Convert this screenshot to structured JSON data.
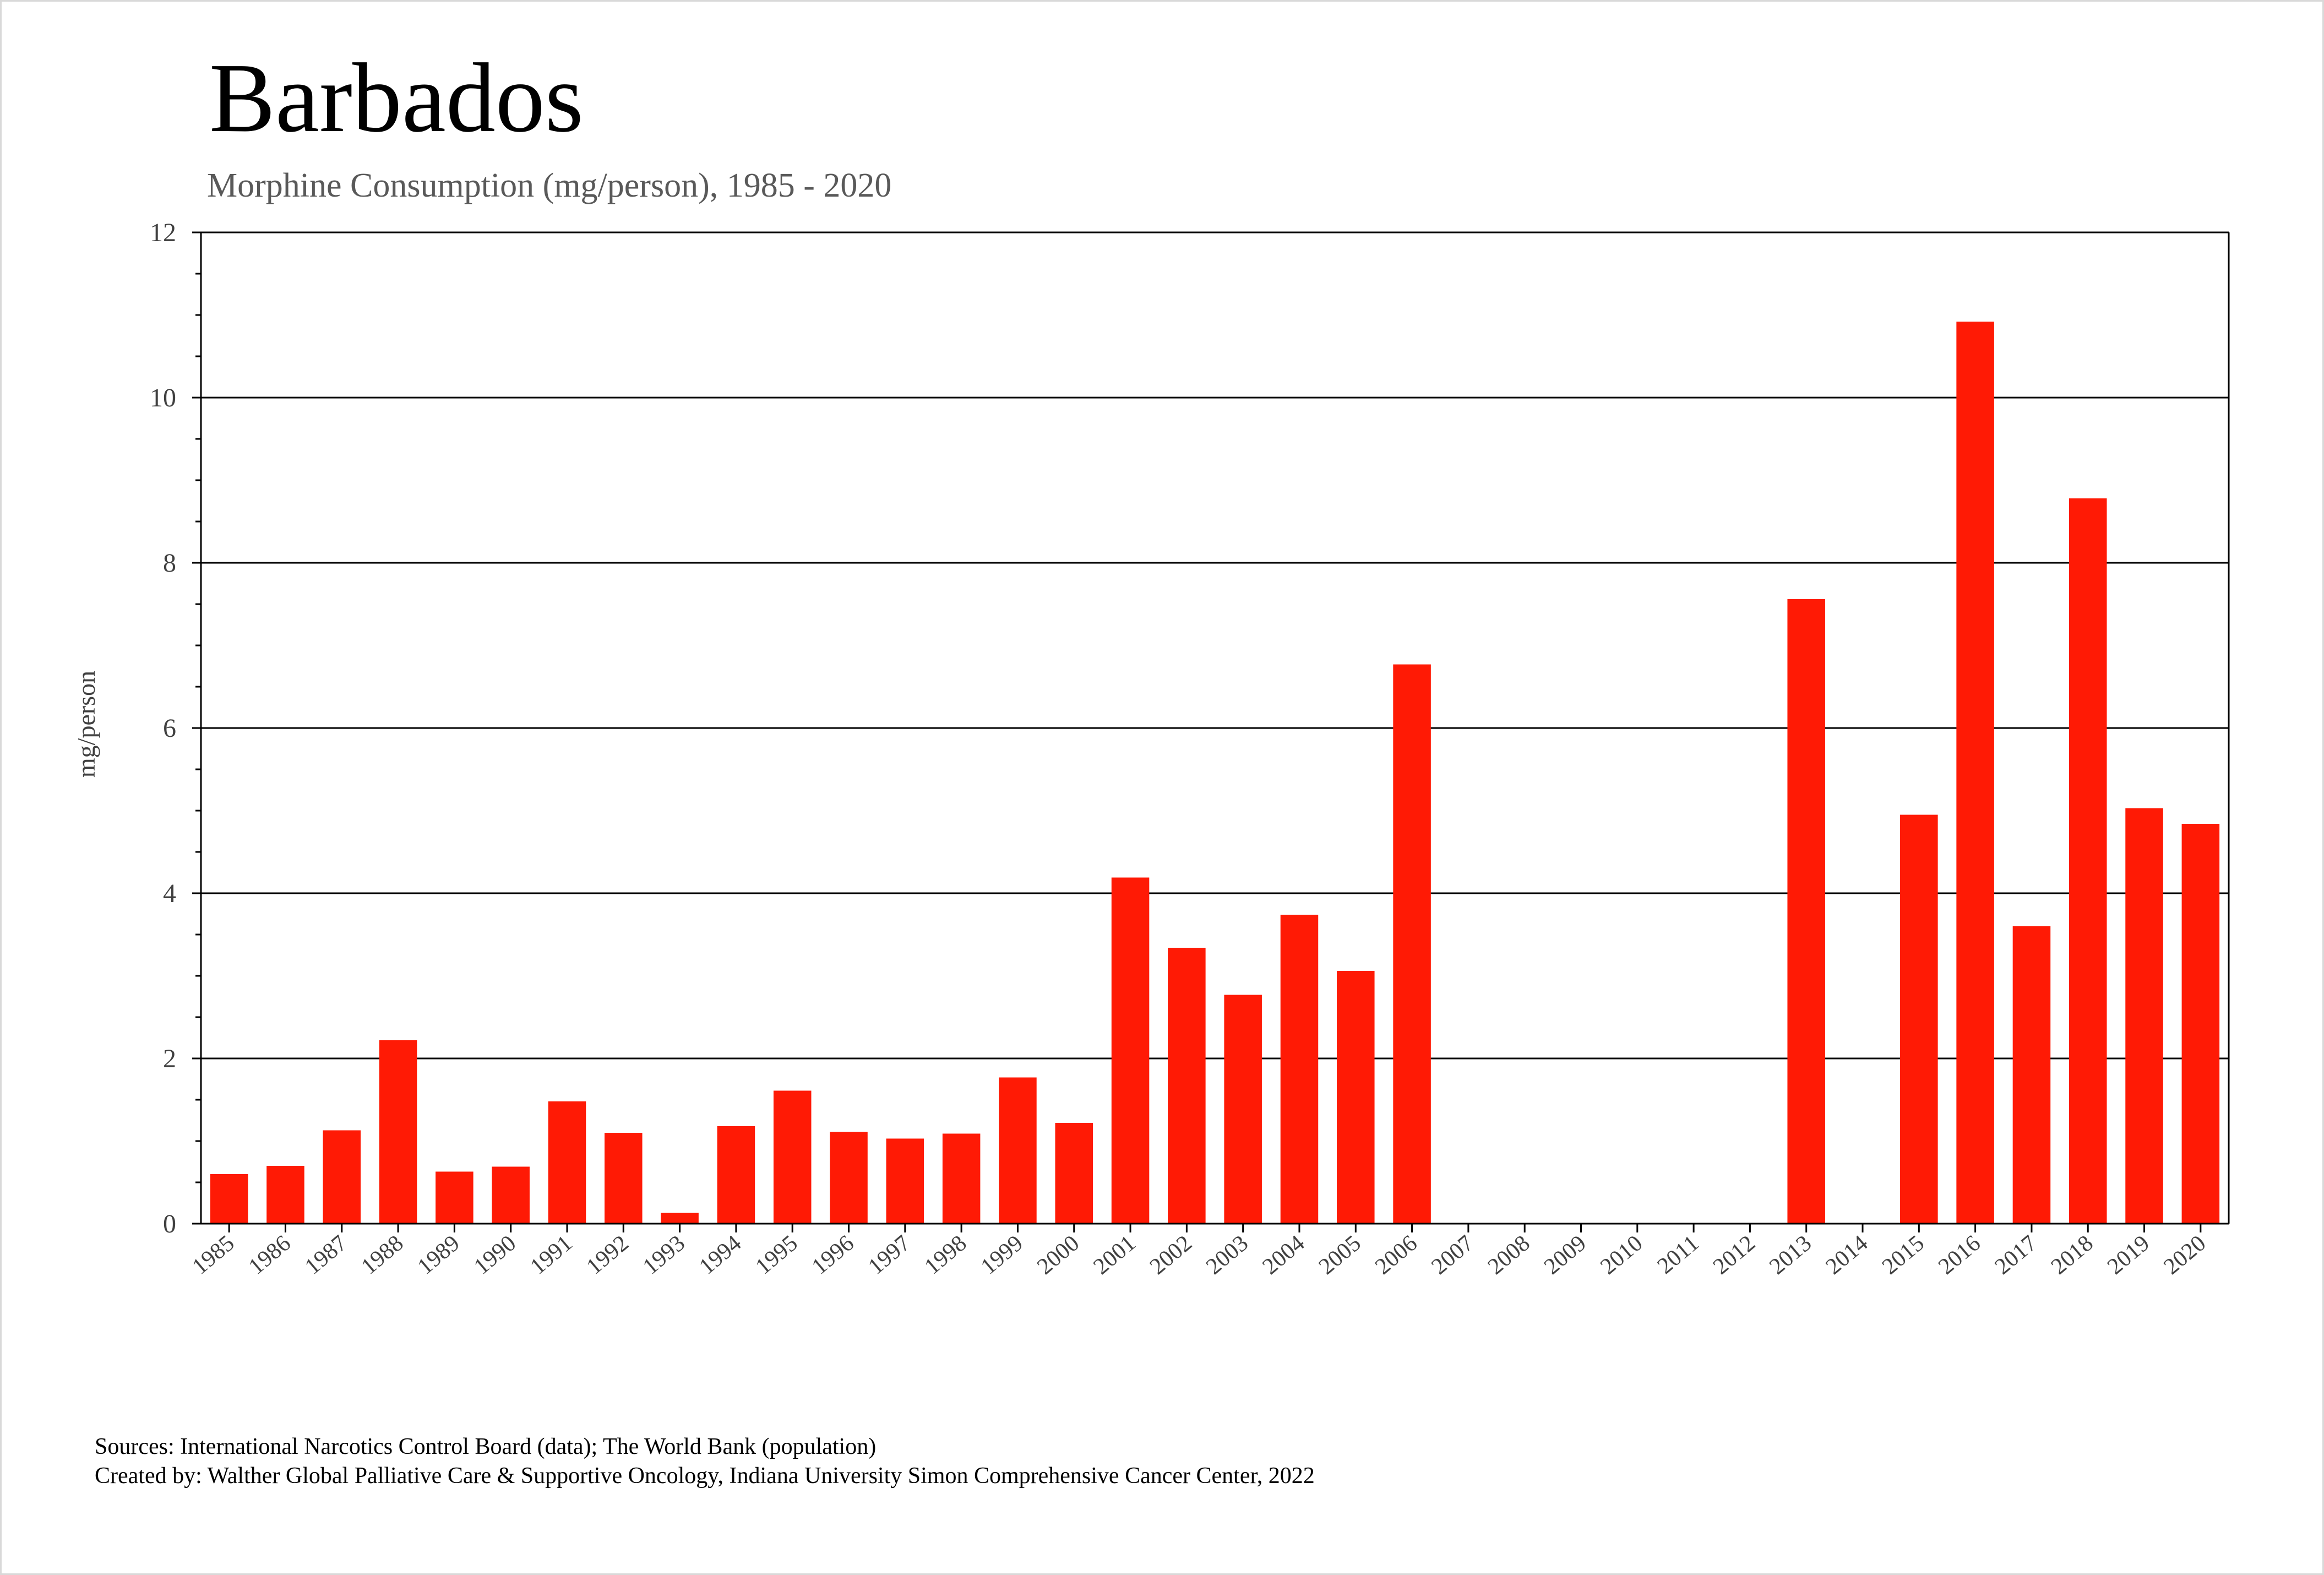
{
  "chart_data": {
    "type": "bar",
    "title": "Barbados",
    "subtitle": "Morphine Consumption (mg/person), 1985 - 2020",
    "xlabel": "",
    "ylabel": "mg/person",
    "ylim": [
      0,
      12
    ],
    "yticks": [
      0,
      2,
      4,
      6,
      8,
      10,
      12
    ],
    "grid": "horizontal",
    "legend": "none",
    "colors": {
      "bar": "#ff1a05",
      "grid": "#000000",
      "axis": "#000000"
    },
    "categories": [
      "1985",
      "1986",
      "1987",
      "1988",
      "1989",
      "1990",
      "1991",
      "1992",
      "1993",
      "1994",
      "1995",
      "1996",
      "1997",
      "1998",
      "1999",
      "2000",
      "2001",
      "2002",
      "2003",
      "2004",
      "2005",
      "2006",
      "2007",
      "2008",
      "2009",
      "2010",
      "2011",
      "2012",
      "2013",
      "2014",
      "2015",
      "2016",
      "2017",
      "2018",
      "2019",
      "2020"
    ],
    "values": [
      0.6,
      0.7,
      1.13,
      2.22,
      0.63,
      0.69,
      1.48,
      1.1,
      0.13,
      1.18,
      1.61,
      1.11,
      1.03,
      1.09,
      1.77,
      1.22,
      4.19,
      3.34,
      2.77,
      3.74,
      3.06,
      6.77,
      null,
      null,
      null,
      null,
      null,
      null,
      7.56,
      null,
      4.95,
      10.92,
      3.6,
      8.78,
      5.03,
      4.84
    ]
  },
  "footer": {
    "sources": "Sources: International Narcotics Control Board (data); The World Bank (population)",
    "created_by": "Created by: Walther  Global Palliative Care & Supportive Oncology, Indiana University Simon Comprehensive Cancer Center, 2022"
  }
}
